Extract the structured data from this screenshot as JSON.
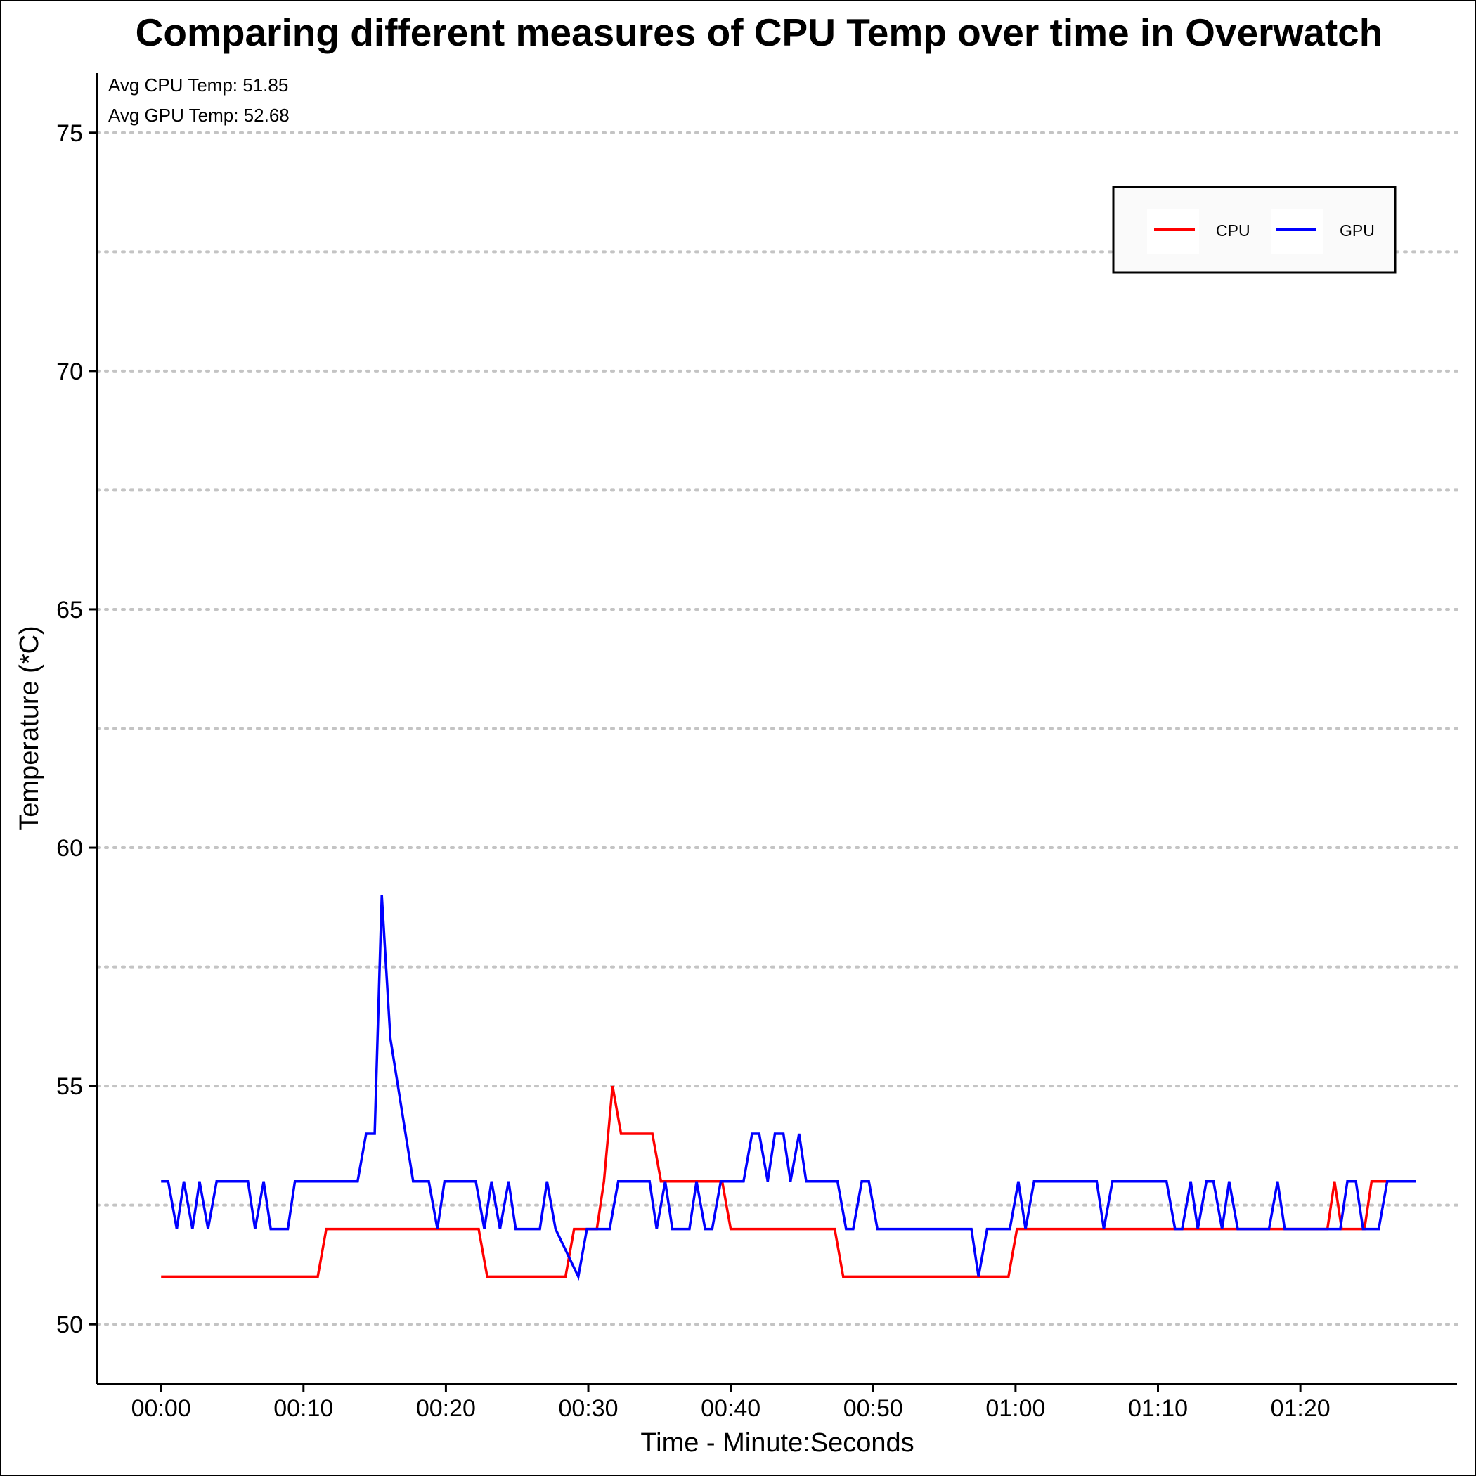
{
  "chart_data": {
    "type": "line",
    "title": "Comparing different measures of CPU Temp over time in Overwatch",
    "xlabel": "Time - Minute:Seconds",
    "ylabel": "Temperature (*C)",
    "xlim": [
      -4.5,
      91
    ],
    "ylim": [
      48.75,
      76.25
    ],
    "x_ticks": [
      0,
      10,
      20,
      30,
      40,
      50,
      60,
      70,
      80
    ],
    "x_tick_labels": [
      "00:00",
      "00:10",
      "00:20",
      "00:30",
      "00:40",
      "00:50",
      "01:00",
      "01:10",
      "01:20"
    ],
    "y_ticks": [
      50,
      55,
      60,
      65,
      70,
      75
    ],
    "y_tick_labels": [
      "50",
      "55",
      "60",
      "65",
      "70",
      "75"
    ],
    "y_grid": [
      50,
      52.5,
      55,
      57.5,
      60,
      62.5,
      65,
      67.5,
      70,
      72.5,
      75
    ],
    "grid": "horizontal dotted",
    "legend_position": "top-right",
    "annotations": [
      "Avg CPU Temp: 51.85",
      "Avg GPU Temp: 52.68"
    ],
    "series": [
      {
        "name": "CPU",
        "color": "#ff0000",
        "points": [
          [
            0,
            51
          ],
          [
            11,
            51
          ],
          [
            11.6,
            52
          ],
          [
            22.3,
            52
          ],
          [
            22.9,
            51
          ],
          [
            28.4,
            51
          ],
          [
            29,
            52
          ],
          [
            30.6,
            52
          ],
          [
            31.1,
            53
          ],
          [
            31.7,
            55
          ],
          [
            32.3,
            54
          ],
          [
            34.5,
            54
          ],
          [
            35.1,
            53
          ],
          [
            39.4,
            53
          ],
          [
            40,
            52
          ],
          [
            47.3,
            52
          ],
          [
            47.9,
            51
          ],
          [
            59.5,
            51
          ],
          [
            60.1,
            52
          ],
          [
            81.4,
            52
          ],
          [
            81.9,
            52
          ],
          [
            82.4,
            53
          ],
          [
            82.9,
            52
          ],
          [
            83.9,
            52
          ],
          [
            84.5,
            52
          ],
          [
            85,
            53
          ],
          [
            87,
            53
          ],
          [
            88.1,
            53
          ]
        ]
      },
      {
        "name": "GPU",
        "color": "#0000ff",
        "points": [
          [
            0,
            53
          ],
          [
            0.5,
            53
          ],
          [
            1.1,
            52
          ],
          [
            1.6,
            53
          ],
          [
            2.2,
            52
          ],
          [
            2.7,
            53
          ],
          [
            3.3,
            52
          ],
          [
            3.9,
            53
          ],
          [
            6.1,
            53
          ],
          [
            6.6,
            52
          ],
          [
            7.2,
            53
          ],
          [
            7.7,
            52
          ],
          [
            8.9,
            52
          ],
          [
            9.4,
            53
          ],
          [
            13.8,
            53
          ],
          [
            14.4,
            54
          ],
          [
            15,
            54
          ],
          [
            15.5,
            59
          ],
          [
            16.1,
            56
          ],
          [
            17.7,
            53
          ],
          [
            18.8,
            53
          ],
          [
            19.4,
            52
          ],
          [
            19.9,
            53
          ],
          [
            22.1,
            53
          ],
          [
            22.7,
            52
          ],
          [
            23.2,
            53
          ],
          [
            23.8,
            52
          ],
          [
            24.4,
            53
          ],
          [
            24.9,
            52
          ],
          [
            26.6,
            52
          ],
          [
            27.1,
            53
          ],
          [
            27.7,
            52
          ],
          [
            29.3,
            51
          ],
          [
            29.9,
            52
          ],
          [
            31.5,
            52
          ],
          [
            32.1,
            53
          ],
          [
            34.3,
            53
          ],
          [
            34.8,
            52
          ],
          [
            35.4,
            53
          ],
          [
            35.9,
            52
          ],
          [
            37.1,
            52
          ],
          [
            37.6,
            53
          ],
          [
            38.2,
            52
          ],
          [
            38.7,
            52
          ],
          [
            39.3,
            53
          ],
          [
            40.9,
            53
          ],
          [
            41.5,
            54
          ],
          [
            42,
            54
          ],
          [
            42.6,
            53
          ],
          [
            43.1,
            54
          ],
          [
            43.7,
            54
          ],
          [
            44.2,
            53
          ],
          [
            44.8,
            54
          ],
          [
            45.3,
            53
          ],
          [
            47.5,
            53
          ],
          [
            48.1,
            52
          ],
          [
            48.6,
            52
          ],
          [
            49.2,
            53
          ],
          [
            49.7,
            53
          ],
          [
            50.3,
            52
          ],
          [
            56.9,
            52
          ],
          [
            57.4,
            51
          ],
          [
            58,
            52
          ],
          [
            59.6,
            52
          ],
          [
            60.2,
            53
          ],
          [
            60.7,
            52
          ],
          [
            61.3,
            53
          ],
          [
            65.7,
            53
          ],
          [
            66.2,
            52
          ],
          [
            66.8,
            53
          ],
          [
            70.6,
            53
          ],
          [
            71.2,
            52
          ],
          [
            71.7,
            52
          ],
          [
            72.3,
            53
          ],
          [
            72.8,
            52
          ],
          [
            73.4,
            53
          ],
          [
            73.9,
            53
          ],
          [
            74.5,
            52
          ],
          [
            75,
            53
          ],
          [
            75.6,
            52
          ],
          [
            77.8,
            52
          ],
          [
            78.4,
            53
          ],
          [
            78.9,
            52
          ],
          [
            80.6,
            52
          ],
          [
            81.1,
            52
          ],
          [
            82.8,
            52
          ],
          [
            83.3,
            53
          ],
          [
            83.9,
            53
          ],
          [
            84.4,
            52
          ],
          [
            85.5,
            52
          ],
          [
            86.1,
            53
          ],
          [
            88.1,
            53
          ]
        ]
      }
    ]
  }
}
